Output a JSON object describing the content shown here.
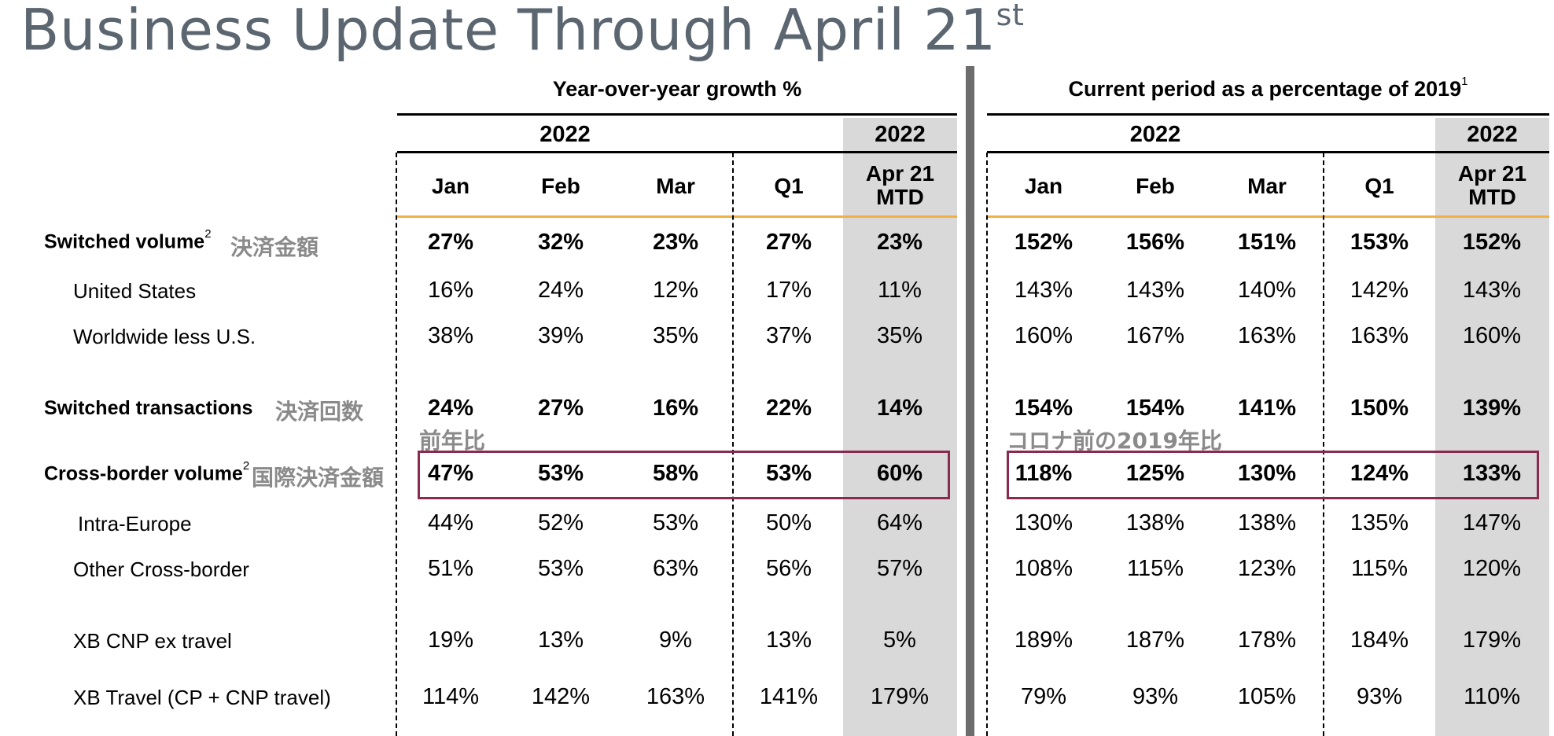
{
  "title": {
    "main": "Business Update Through April 21",
    "sup": "st"
  },
  "left_panel": {
    "header": "Year-over-year growth %",
    "year_left": "2022",
    "year_right": "2022",
    "columns": [
      "Jan",
      "Feb",
      "Mar",
      "Q1"
    ],
    "mtd_line1": "Apr 21",
    "mtd_line2": "MTD"
  },
  "right_panel": {
    "header": "Current period as a percentage of 2019",
    "header_sup": "1",
    "year_left": "2022",
    "year_right": "2022",
    "columns": [
      "Jan",
      "Feb",
      "Mar",
      "Q1"
    ],
    "mtd_line1": "Apr 21",
    "mtd_line2": "MTD"
  },
  "rows": [
    {
      "label": "Switched volume",
      "sup": "2",
      "jp": "決済金額",
      "bold": true,
      "yoy": [
        "27%",
        "32%",
        "23%",
        "27%",
        "23%"
      ],
      "vs2019": [
        "152%",
        "156%",
        "151%",
        "153%",
        "152%"
      ]
    },
    {
      "label": "United States",
      "bold": false,
      "yoy": [
        "16%",
        "24%",
        "12%",
        "17%",
        "11%"
      ],
      "vs2019": [
        "143%",
        "143%",
        "140%",
        "142%",
        "143%"
      ]
    },
    {
      "label": "Worldwide less U.S.",
      "bold": false,
      "yoy": [
        "38%",
        "39%",
        "35%",
        "37%",
        "35%"
      ],
      "vs2019": [
        "160%",
        "167%",
        "163%",
        "163%",
        "160%"
      ]
    },
    {
      "label": "Switched transactions",
      "jp": "決済回数",
      "bold": true,
      "yoy": [
        "24%",
        "27%",
        "16%",
        "22%",
        "14%"
      ],
      "vs2019": [
        "154%",
        "154%",
        "141%",
        "150%",
        "139%"
      ]
    },
    {
      "label": "Cross-border volume",
      "sup": "2",
      "jp": "国際決済金額",
      "bold": true,
      "yoy": [
        "47%",
        "53%",
        "58%",
        "53%",
        "60%"
      ],
      "vs2019": [
        "118%",
        "125%",
        "130%",
        "124%",
        "133%"
      ]
    },
    {
      "label": "Intra-Europe",
      "bold": false,
      "yoy": [
        "44%",
        "52%",
        "53%",
        "50%",
        "64%"
      ],
      "vs2019": [
        "130%",
        "138%",
        "138%",
        "135%",
        "147%"
      ]
    },
    {
      "label": "Other Cross-border",
      "bold": false,
      "yoy": [
        "51%",
        "53%",
        "63%",
        "56%",
        "57%"
      ],
      "vs2019": [
        "108%",
        "115%",
        "123%",
        "115%",
        "120%"
      ]
    },
    {
      "label": "XB CNP ex travel",
      "bold": false,
      "yoy": [
        "19%",
        "13%",
        "9%",
        "13%",
        "5%"
      ],
      "vs2019": [
        "189%",
        "187%",
        "178%",
        "184%",
        "179%"
      ]
    },
    {
      "label": "XB Travel (CP + CNP travel)",
      "bold": false,
      "yoy": [
        "114%",
        "142%",
        "163%",
        "141%",
        "179%"
      ],
      "vs2019": [
        "79%",
        "93%",
        "105%",
        "93%",
        "110%"
      ]
    }
  ],
  "annotations": {
    "yoy_note": "前年比",
    "vs2019_note": "コロナ前の2019年比"
  },
  "colors": {
    "title": "#5b6670",
    "accent_line": "#f0b043",
    "highlight_box": "#8b2a4f",
    "mtd_shade": "#d9d9d9",
    "annotation": "#8a8a8a"
  }
}
